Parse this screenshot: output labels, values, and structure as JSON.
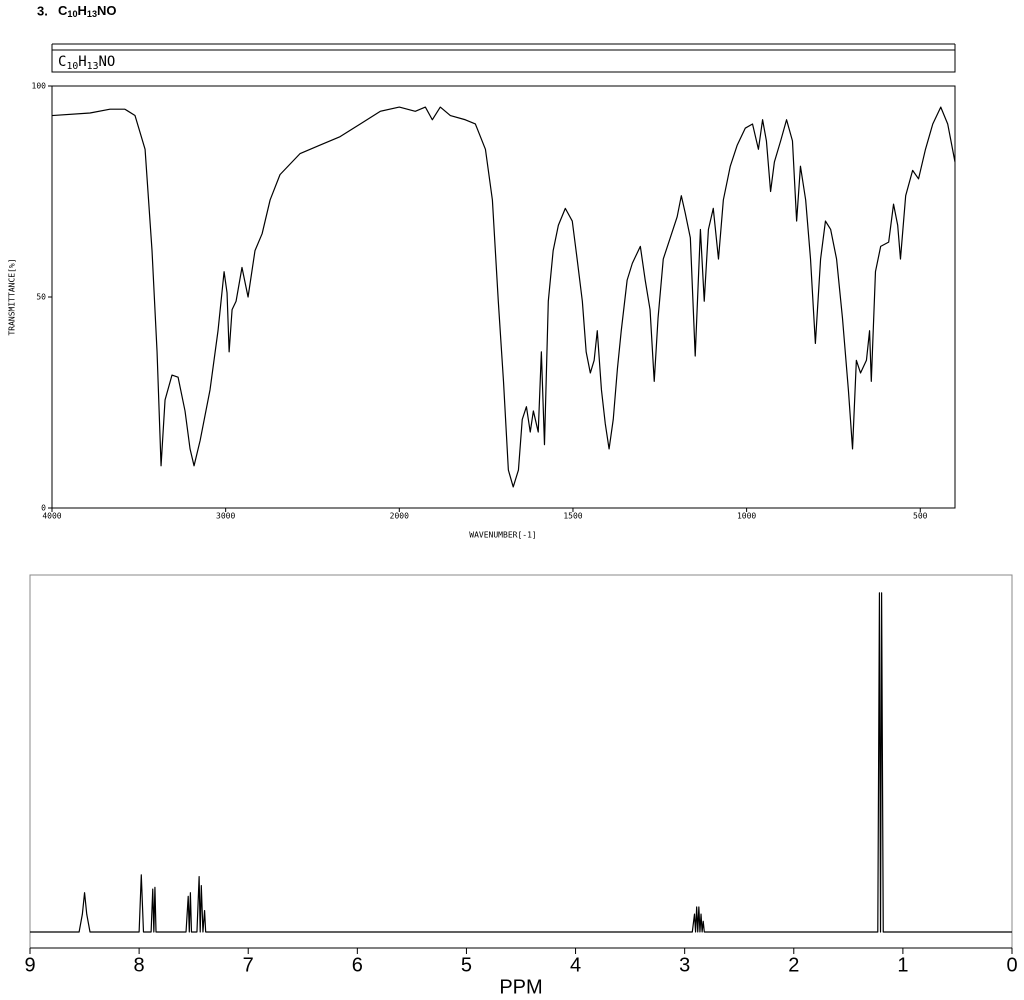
{
  "heading": {
    "number": "3.",
    "formula": [
      "C",
      "10",
      "H",
      "13",
      "NO"
    ]
  },
  "chart_data": [
    {
      "type": "line",
      "title": [
        "C",
        "10",
        "H",
        "13",
        "NO"
      ],
      "x_label": "WAVENUMBER[-1]",
      "y_label": "TRANSMITTANCE[%]",
      "xlim": [
        4000,
        400
      ],
      "x_scale_change": 2000,
      "ylim": [
        0,
        100
      ],
      "xticks": [
        4000,
        3000,
        2000,
        1500,
        1000,
        500
      ],
      "yticks": [
        0,
        50,
        100
      ],
      "x": [
        4000,
        3781,
        3666,
        3580,
        3522,
        3464,
        3424,
        3395,
        3372,
        3349,
        3309,
        3274,
        3234,
        3205,
        3182,
        3147,
        3090,
        3044,
        3009,
        2992,
        2980,
        2963,
        2940,
        2906,
        2871,
        2831,
        2790,
        2744,
        2687,
        2571,
        2456,
        2341,
        2225,
        2110,
        2000,
        1954,
        1925,
        1905,
        1882,
        1853,
        1810,
        1781,
        1752,
        1732,
        1715,
        1700,
        1686,
        1672,
        1657,
        1646,
        1634,
        1623,
        1614,
        1600,
        1591,
        1582,
        1571,
        1557,
        1542,
        1522,
        1502,
        1488,
        1473,
        1462,
        1450,
        1439,
        1430,
        1418,
        1407,
        1396,
        1384,
        1372,
        1361,
        1344,
        1329,
        1306,
        1292,
        1278,
        1266,
        1255,
        1240,
        1220,
        1200,
        1188,
        1177,
        1162,
        1148,
        1133,
        1122,
        1110,
        1096,
        1081,
        1067,
        1047,
        1027,
        1004,
        983,
        966,
        954,
        943,
        931,
        920,
        902,
        885,
        868,
        856,
        845,
        830,
        816,
        802,
        787,
        773,
        758,
        741,
        724,
        707,
        695,
        684,
        672,
        655,
        646,
        641,
        629,
        614,
        591,
        577,
        565,
        557,
        542,
        522,
        505,
        485,
        464,
        441,
        421,
        400
      ],
      "series": [
        {
          "color": "#000000",
          "values": [
            93,
            93.6,
            94.5,
            94.5,
            93,
            85,
            61,
            37,
            10,
            25.6,
            31.5,
            31,
            23,
            14,
            10,
            16,
            28,
            42,
            56,
            51,
            37,
            47,
            49,
            57,
            50,
            61,
            65,
            73,
            79,
            84,
            86,
            88,
            91,
            94,
            95,
            94,
            95,
            92,
            95,
            93,
            92,
            91,
            85,
            73,
            49,
            30,
            9,
            5,
            9,
            21,
            24,
            18,
            23,
            18,
            37,
            15,
            49,
            61,
            67,
            71,
            68,
            59,
            49,
            37,
            32,
            35,
            42,
            28,
            20,
            14,
            21,
            33,
            42,
            54,
            58,
            62,
            54,
            47,
            30,
            45,
            59,
            64,
            69,
            74,
            70,
            64,
            36,
            66,
            49,
            66,
            71,
            59,
            73,
            81,
            86,
            90,
            91,
            85,
            92,
            87,
            75,
            82,
            87,
            92,
            87,
            68,
            81,
            73,
            59,
            39,
            59,
            68,
            66,
            59,
            45,
            28,
            14,
            35,
            32,
            35,
            42,
            30,
            56,
            62,
            63,
            72,
            67,
            59,
            74,
            80,
            78,
            85,
            91,
            95,
            91,
            82
          ]
        }
      ]
    },
    {
      "type": "line",
      "x_label": "PPM",
      "xlim": [
        9,
        0
      ],
      "ylim": [
        0,
        100
      ],
      "xticks": [
        9,
        8,
        7,
        6,
        5,
        4,
        3,
        2,
        1,
        0
      ],
      "x": [
        9,
        8.55,
        8.52,
        8.5,
        8.48,
        8.45,
        8.0,
        7.98,
        7.96,
        7.89,
        7.875,
        7.865,
        7.855,
        7.845,
        7.57,
        7.55,
        7.54,
        7.53,
        7.52,
        7.47,
        7.45,
        7.44,
        7.43,
        7.415,
        7.4,
        7.39,
        2.93,
        2.91,
        2.9,
        2.89,
        2.88,
        2.87,
        2.86,
        2.85,
        2.84,
        2.83,
        2.82,
        1.23,
        1.215,
        1.205,
        1.195,
        1.18,
        0
      ],
      "series": [
        {
          "color": "#000000",
          "values": [
            0,
            0,
            5,
            11,
            5,
            0,
            0,
            16,
            0,
            0,
            12,
            0,
            12.5,
            0,
            0,
            10,
            0,
            11,
            0,
            0,
            15.5,
            0,
            13,
            0,
            6,
            0,
            0,
            5,
            0,
            7,
            0,
            7,
            0,
            5,
            0,
            3,
            0,
            0,
            95,
            0,
            95,
            0,
            0
          ]
        }
      ]
    }
  ]
}
